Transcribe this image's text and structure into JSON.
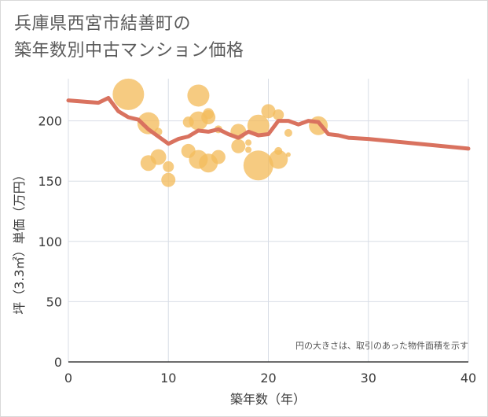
{
  "title_lines": [
    "兵庫県西宮市結善町の",
    "築年数別中古マンション価格"
  ],
  "note": "円の大きさは、取引のあった物件面積を示す",
  "colors": {
    "line": "#d9725f",
    "bubble": "#f3bc5e",
    "grid": "#d8dde6",
    "axis": "#3b3b3b"
  },
  "chart_data": {
    "type": "line+bubble",
    "xlabel": "築年数（年）",
    "ylabel": "坪（3.3㎡）単価（万円）",
    "xlim": [
      0,
      40
    ],
    "ylim": [
      0,
      235
    ],
    "xticks": [
      0,
      10,
      20,
      30,
      40
    ],
    "yticks": [
      0,
      50,
      100,
      150,
      200
    ],
    "grid": true,
    "line": {
      "x": [
        0,
        3,
        4,
        5,
        6,
        7,
        8,
        9,
        10,
        11,
        12,
        13,
        14,
        15,
        16,
        17,
        18,
        19,
        20,
        21,
        22,
        23,
        24,
        25,
        26,
        27,
        28,
        30,
        35,
        40
      ],
      "y": [
        217,
        215,
        219,
        208,
        203,
        201,
        193,
        187,
        181,
        185,
        187,
        192,
        191,
        193,
        189,
        186,
        191,
        188,
        189,
        200,
        200,
        197,
        200,
        199,
        189,
        188,
        186,
        185,
        181,
        177
      ]
    },
    "bubbles": [
      {
        "x": 6,
        "y": 222,
        "size": 20
      },
      {
        "x": 8,
        "y": 198,
        "size": 14
      },
      {
        "x": 8,
        "y": 165,
        "size": 10
      },
      {
        "x": 9,
        "y": 170,
        "size": 10
      },
      {
        "x": 9,
        "y": 191,
        "size": 5
      },
      {
        "x": 10,
        "y": 162,
        "size": 7
      },
      {
        "x": 10,
        "y": 151,
        "size": 9
      },
      {
        "x": 12,
        "y": 199,
        "size": 7
      },
      {
        "x": 12,
        "y": 175,
        "size": 9
      },
      {
        "x": 13,
        "y": 221,
        "size": 14
      },
      {
        "x": 13,
        "y": 200,
        "size": 12
      },
      {
        "x": 13,
        "y": 168,
        "size": 12
      },
      {
        "x": 14,
        "y": 203,
        "size": 9
      },
      {
        "x": 14,
        "y": 206,
        "size": 7
      },
      {
        "x": 14,
        "y": 165,
        "size": 12
      },
      {
        "x": 15,
        "y": 170,
        "size": 9
      },
      {
        "x": 15,
        "y": 193,
        "size": 5
      },
      {
        "x": 17,
        "y": 191,
        "size": 10
      },
      {
        "x": 17,
        "y": 179,
        "size": 9
      },
      {
        "x": 18,
        "y": 182,
        "size": 4
      },
      {
        "x": 18,
        "y": 176,
        "size": 4
      },
      {
        "x": 19,
        "y": 196,
        "size": 14
      },
      {
        "x": 19,
        "y": 163,
        "size": 19
      },
      {
        "x": 20,
        "y": 208,
        "size": 9
      },
      {
        "x": 21,
        "y": 205,
        "size": 7
      },
      {
        "x": 21,
        "y": 168,
        "size": 12
      },
      {
        "x": 21,
        "y": 175,
        "size": 5
      },
      {
        "x": 22,
        "y": 190,
        "size": 5
      },
      {
        "x": 22,
        "y": 172,
        "size": 3
      },
      {
        "x": 25,
        "y": 196,
        "size": 12
      }
    ]
  }
}
